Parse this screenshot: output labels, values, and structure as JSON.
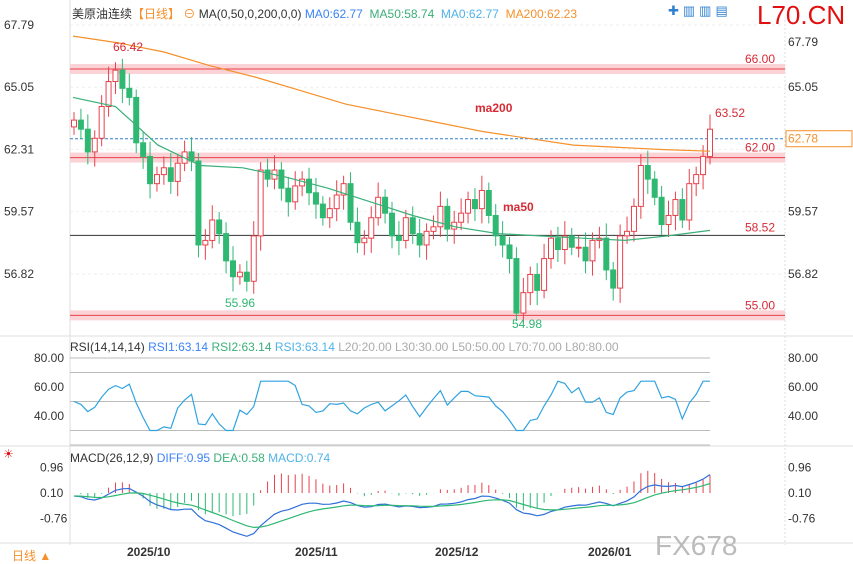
{
  "header": {
    "symbol": "美原油连续",
    "period": "【日线】",
    "ma_label": "MA(0,50,0,200,0,0)",
    "ma0": "MA0:62.77",
    "ma50": "MA50:58.74",
    "ma0b": "MA0:62.77",
    "ma200": "MA200:62.23",
    "brand": "L70.CN"
  },
  "colors": {
    "up": "#e8414b",
    "down": "#2eb872",
    "ma200": "#f5902b",
    "ma50": "#3aaf78",
    "rsi": "#2fa3e0",
    "macd_diff": "#2f6fd9",
    "macd_dea": "#2eb872"
  },
  "chart_data": {
    "type": "candlestick",
    "price_axis": {
      "ticks": [
        "67.79",
        "65.05",
        "62.31",
        "59.57",
        "56.82"
      ],
      "ylim": [
        54.3,
        68.0
      ]
    },
    "right_axis": {
      "ticks": [
        "67.79",
        "65.05",
        "59.57",
        "56.82"
      ],
      "current": "62.78"
    },
    "x_labels": [
      "2025/10",
      "2025/11",
      "2025/12",
      "2026/01"
    ],
    "closes": [
      63.6,
      63.2,
      62.2,
      62.8,
      64.2,
      65.3,
      65.8,
      65.0,
      64.6,
      62.6,
      62.0,
      60.8,
      61.2,
      61.5,
      60.9,
      61.7,
      62.2,
      61.8,
      58.1,
      58.3,
      59.2,
      58.6,
      57.4,
      56.7,
      56.9,
      56.5,
      58.5,
      61.4,
      61.0,
      61.4,
      60.6,
      60.0,
      60.7,
      61.0,
      60.4,
      59.9,
      59.3,
      59.7,
      60.3,
      60.8,
      59.1,
      58.2,
      58.4,
      59.3,
      60.2,
      59.5,
      58.5,
      58.3,
      59.3,
      58.6,
      58.1,
      58.7,
      58.9,
      59.8,
      58.8,
      59.1,
      59.5,
      60.1,
      59.7,
      60.5,
      59.4,
      58.5,
      58.1,
      57.5,
      55.1,
      56.0,
      56.8,
      56.1,
      57.5,
      58.4,
      57.9,
      58.5,
      58.0,
      58.0,
      57.4,
      58.3,
      58.4,
      57.0,
      56.2,
      58.5,
      58.7,
      59.8,
      61.6,
      61.0,
      60.2,
      59.0,
      59.4,
      60.1,
      59.2,
      60.8,
      61.2,
      62.0,
      63.2
    ],
    "ma200": [
      67.3,
      67.0,
      66.6,
      66.0,
      65.5,
      64.9,
      64.3,
      63.9,
      63.5,
      63.1,
      62.8,
      62.5,
      62.4,
      62.3,
      62.23
    ],
    "ma50": [
      64.6,
      64.2,
      62.5,
      61.6,
      61.5,
      61.1,
      60.6,
      60.0,
      59.4,
      58.9,
      58.6,
      58.5,
      58.4,
      58.3,
      58.5,
      58.74
    ],
    "levels": [
      {
        "label": "66.00",
        "value": 65.85
      },
      {
        "label": "62.00",
        "value": 61.95
      },
      {
        "label": "55.00",
        "value": 55.0
      }
    ],
    "hline": 58.52,
    "hline_label": "58.52",
    "current_line": 62.78,
    "annotations": {
      "high": "66.42",
      "low1": "55.96",
      "low2": "54.98",
      "last_high": "63.52",
      "ma200": "ma200",
      "ma50": "ma50"
    },
    "rsi": {
      "title": "RSI(14,14,14)",
      "rsi1": "RSI1:63.14",
      "rsi2": "RSI2:63.14",
      "rsi3": "RSI3:63.14",
      "l20": "L20:20.00",
      "l30": "L30:30.00",
      "l50": "L50:50.00",
      "l70": "L70:70.00",
      "l80": "L80:80.00",
      "ticks": [
        "80.00",
        "60.00",
        "40.00"
      ],
      "ticks_right": [
        "80.00",
        "60.00",
        "40.00"
      ]
    },
    "macd": {
      "title": "MACD(26,12,9)",
      "diff": "DIFF:0.95",
      "dea": "DEA:0.58",
      "macd": "MACD:0.74",
      "ticks": [
        "0.96",
        "0.10",
        "-0.76"
      ],
      "ticks_right": [
        "0.96",
        "0.10",
        "-0.76"
      ]
    }
  },
  "footer": {
    "period": "日线 ▲",
    "watermark": "FX678"
  }
}
